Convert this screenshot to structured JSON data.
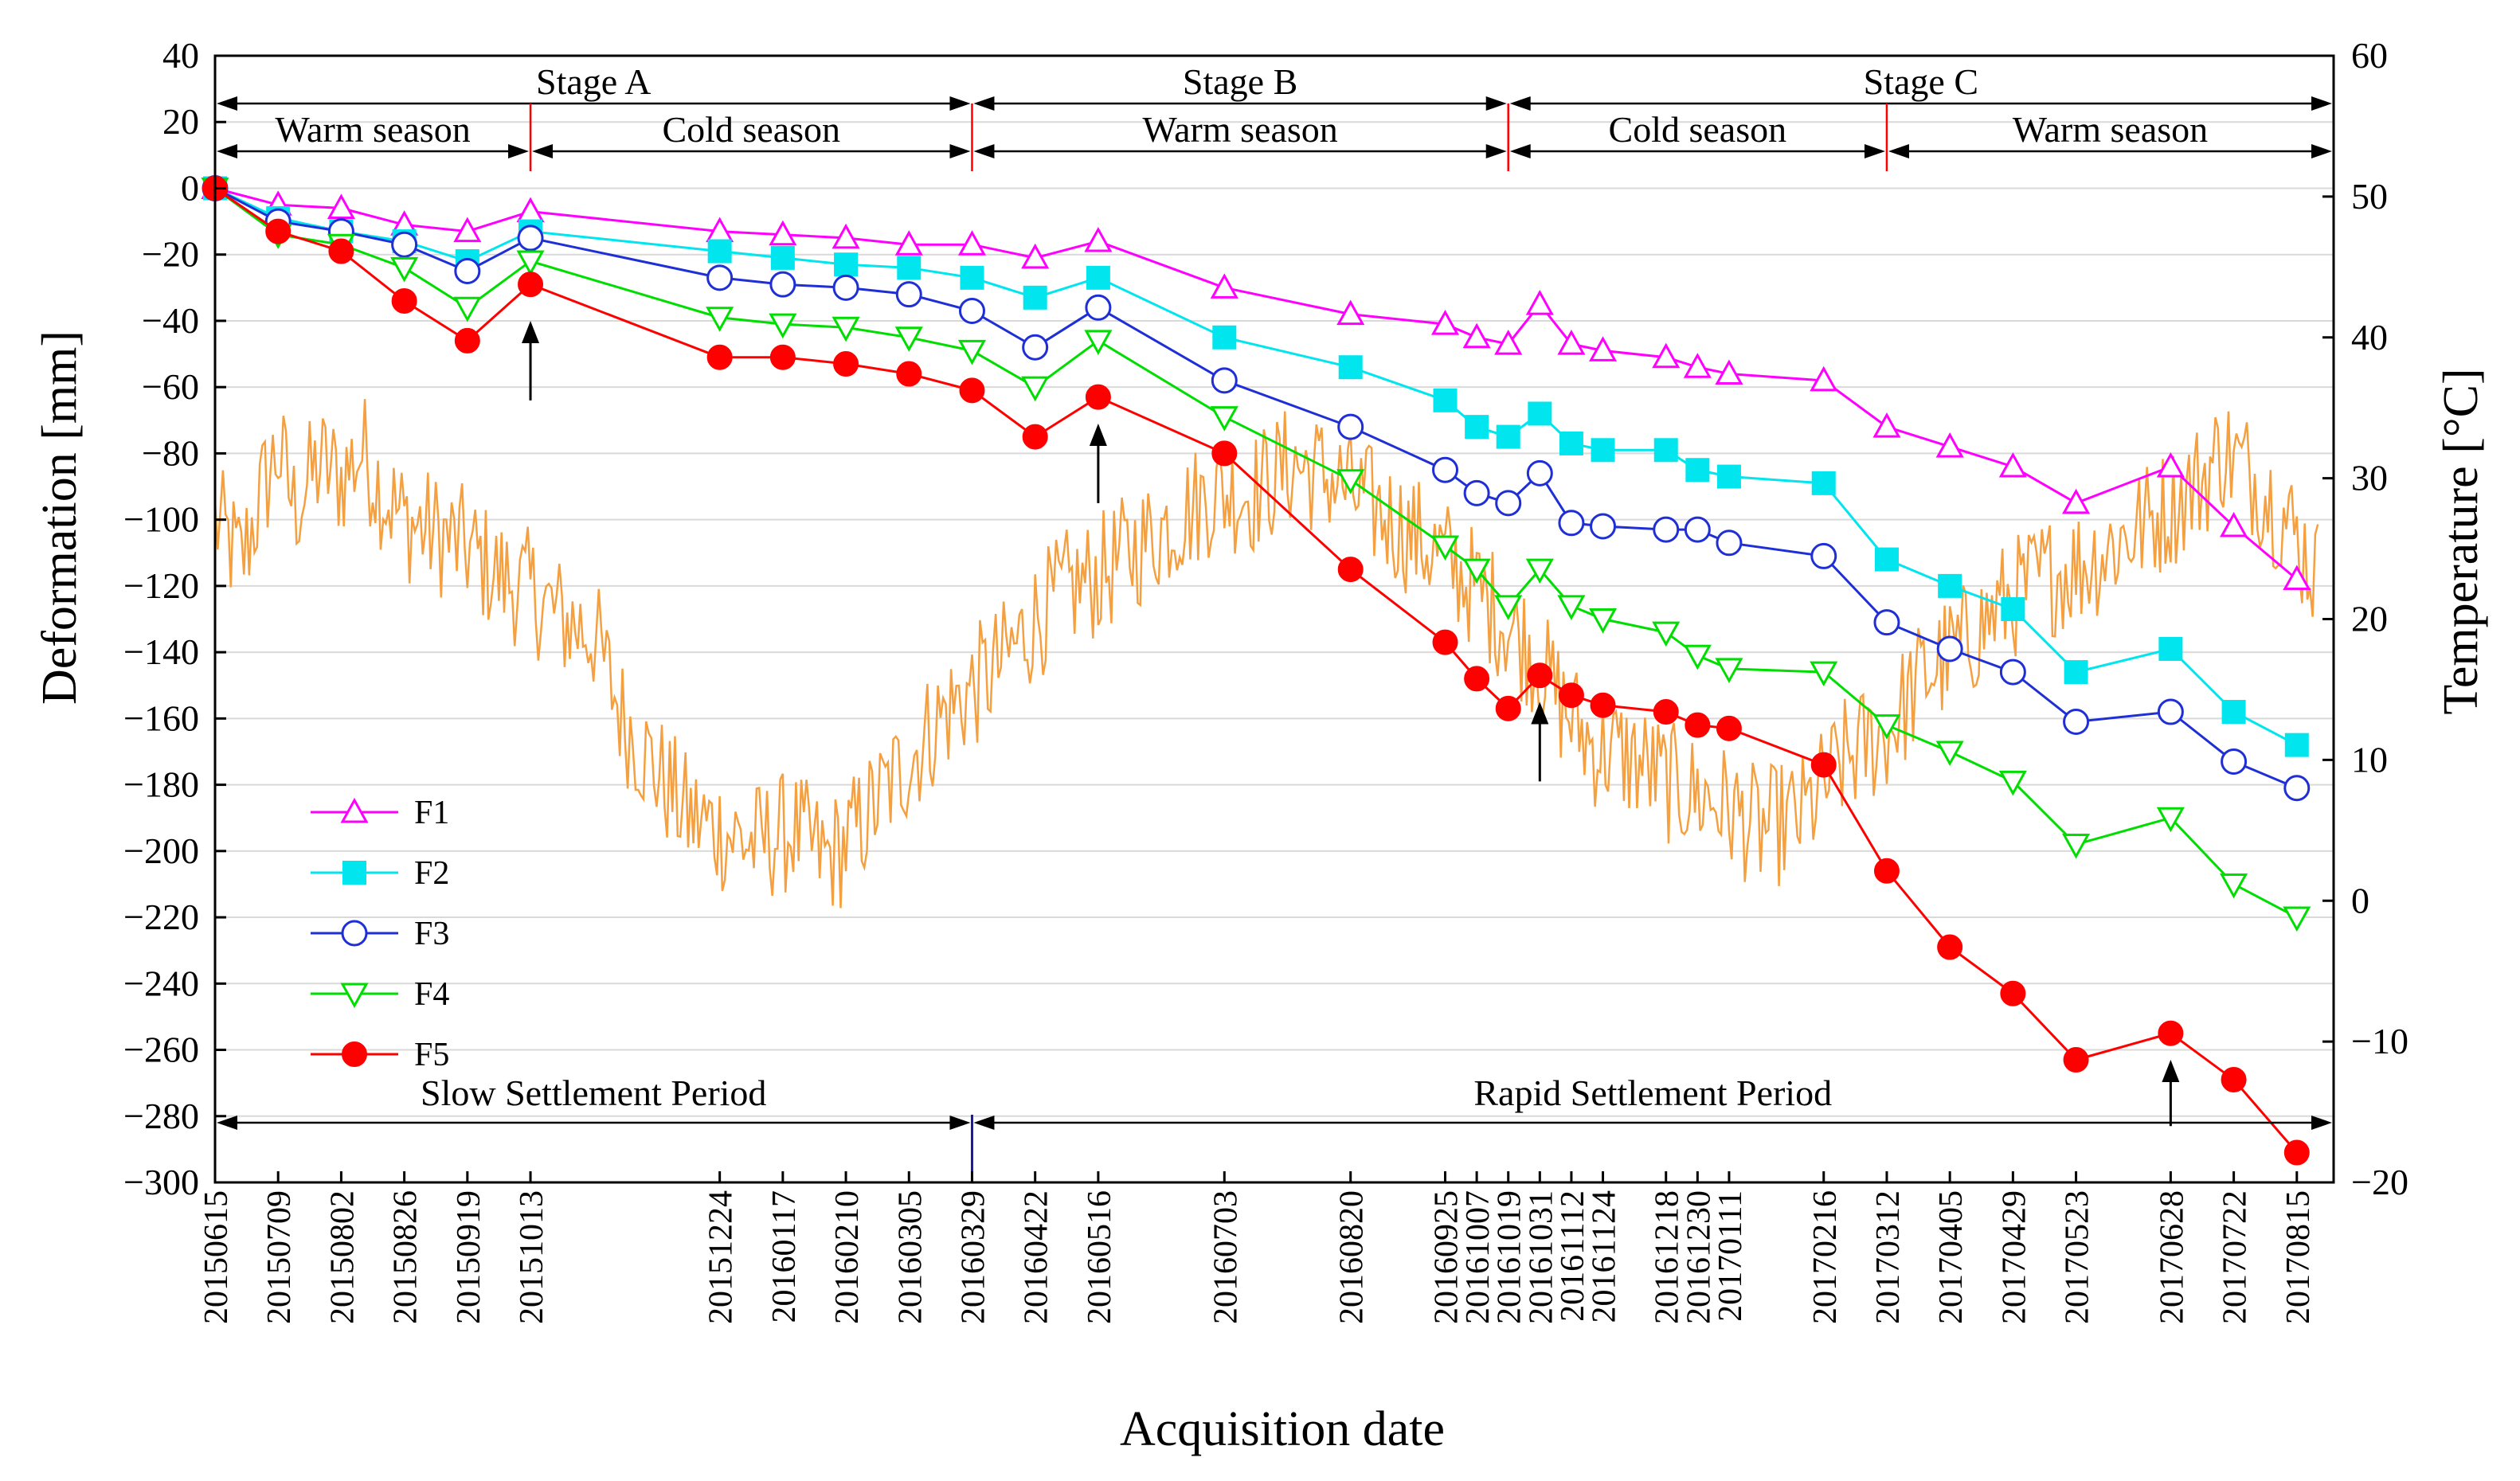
{
  "chart_data": {
    "type": "line",
    "title": "",
    "xlabel": "Acquisition date",
    "ylabel": "Deformation [mm]",
    "y2label": "Temperature [°C]",
    "ylim": [
      -300,
      40
    ],
    "y2lim": [
      -20,
      60
    ],
    "yticks": [
      40,
      20,
      0,
      -20,
      -40,
      -60,
      -80,
      -100,
      -120,
      -140,
      -160,
      -180,
      -200,
      -220,
      -240,
      -260,
      -280,
      -300
    ],
    "y2ticks": [
      60,
      50,
      40,
      30,
      20,
      10,
      0,
      -10,
      -20
    ],
    "dates": [
      "20150615",
      "20150709",
      "20150802",
      "20150826",
      "20150919",
      "20151013",
      "20151224",
      "20160117",
      "20160210",
      "20160305",
      "20160329",
      "20160422",
      "20160516",
      "20160703",
      "20160820",
      "20160925",
      "20161007",
      "20161019",
      "20161031",
      "20161112",
      "20161124",
      "20161218",
      "20161230",
      "20170111",
      "20170216",
      "20170312",
      "20170405",
      "20170429",
      "20170523",
      "20170628",
      "20170722",
      "20170815"
    ],
    "date_labels": [
      "20150615",
      "20150709",
      "20150802",
      "20150826",
      "20150919",
      "20151013",
      "20151224",
      "20160117",
      "20160210",
      "20160305",
      "20160329",
      "20160422",
      "20160516",
      "20160703",
      "20160820",
      "20160925",
      "20161007",
      "20161019",
      "20161031",
      "20161112",
      "20161124",
      "20161218",
      "20161230",
      "20170111",
      "20170216",
      "20170312",
      "20170405",
      "20170429",
      "20170523",
      "20170628",
      "20170722",
      "20170815"
    ],
    "day_offsets": [
      0,
      24,
      48,
      72,
      96,
      120,
      192,
      216,
      240,
      264,
      288,
      312,
      336,
      384,
      432,
      468,
      480,
      492,
      504,
      516,
      528,
      552,
      564,
      576,
      612,
      636,
      660,
      684,
      708,
      744,
      768,
      792
    ],
    "series": [
      {
        "name": "F1",
        "color": "#ff00ff",
        "marker": "triangle-up",
        "values": [
          0,
          -5,
          -6,
          -11,
          -13,
          -7,
          -13,
          -14,
          -15,
          -17,
          -17,
          -21,
          -16,
          -30,
          -38,
          -41,
          -45,
          -47,
          -35,
          -47,
          -49,
          -51,
          -54,
          -56,
          -58,
          -72,
          -78,
          -84,
          -95,
          -84,
          -102,
          -118
        ]
      },
      {
        "name": "F2",
        "color": "#00e5ee",
        "marker": "square",
        "values": [
          0,
          -9,
          -13,
          -16,
          -22,
          -13,
          -19,
          -21,
          -23,
          -24,
          -27,
          -33,
          -27,
          -45,
          -54,
          -64,
          -72,
          -75,
          -68,
          -77,
          -79,
          -79,
          -85,
          -87,
          -89,
          -112,
          -120,
          -127,
          -146,
          -139,
          -158,
          -168
        ]
      },
      {
        "name": "F3",
        "color": "#1f2fd6",
        "marker": "circle-open",
        "values": [
          0,
          -10,
          -13,
          -17,
          -25,
          -15,
          -27,
          -29,
          -30,
          -32,
          -37,
          -48,
          -36,
          -58,
          -72,
          -85,
          -92,
          -95,
          -86,
          -101,
          -102,
          -103,
          -103,
          -107,
          -111,
          -131,
          -139,
          -146,
          -161,
          -158,
          -173,
          -181
        ]
      },
      {
        "name": "F4",
        "color": "#00dd00",
        "marker": "triangle-down",
        "values": [
          0,
          -14,
          -17,
          -24,
          -36,
          -22,
          -39,
          -41,
          -42,
          -45,
          -49,
          -60,
          -46,
          -69,
          -88,
          -108,
          -115,
          -126,
          -115,
          -126,
          -130,
          -134,
          -141,
          -145,
          -146,
          -162,
          -170,
          -179,
          -198,
          -190,
          -210,
          -220
        ]
      },
      {
        "name": "F5",
        "color": "#ff0000",
        "marker": "circle-filled",
        "values": [
          0,
          -13,
          -19,
          -34,
          -46,
          -29,
          -51,
          -51,
          -53,
          -56,
          -61,
          -75,
          -63,
          -80,
          -115,
          -137,
          -148,
          -157,
          -147,
          -153,
          -156,
          -158,
          -162,
          -163,
          -174,
          -206,
          -229,
          -243,
          -263,
          -255,
          -269,
          -291
        ]
      }
    ],
    "temperature": {
      "name": "Temperature",
      "color": "#f5a040",
      "anchors": [
        [
          0,
          27
        ],
        [
          10,
          24
        ],
        [
          18,
          29
        ],
        [
          24,
          32
        ],
        [
          30,
          28
        ],
        [
          40,
          31
        ],
        [
          48,
          30
        ],
        [
          56,
          32
        ],
        [
          64,
          29
        ],
        [
          72,
          27
        ],
        [
          85,
          26
        ],
        [
          96,
          25
        ],
        [
          108,
          23
        ],
        [
          120,
          22
        ],
        [
          132,
          20
        ],
        [
          144,
          19
        ],
        [
          155,
          13
        ],
        [
          165,
          10
        ],
        [
          180,
          6
        ],
        [
          192,
          5
        ],
        [
          205,
          4
        ],
        [
          220,
          5
        ],
        [
          232,
          3
        ],
        [
          240,
          4
        ],
        [
          252,
          7
        ],
        [
          264,
          10
        ],
        [
          276,
          13
        ],
        [
          288,
          15
        ],
        [
          300,
          17
        ],
        [
          312,
          20
        ],
        [
          324,
          22
        ],
        [
          336,
          23
        ],
        [
          350,
          25
        ],
        [
          365,
          27
        ],
        [
          380,
          29
        ],
        [
          395,
          29
        ],
        [
          410,
          31
        ],
        [
          425,
          30
        ],
        [
          440,
          28
        ],
        [
          455,
          26
        ],
        [
          470,
          24
        ],
        [
          485,
          21
        ],
        [
          500,
          18
        ],
        [
          512,
          14
        ],
        [
          524,
          11
        ],
        [
          540,
          10
        ],
        [
          556,
          8
        ],
        [
          572,
          7
        ],
        [
          588,
          5
        ],
        [
          604,
          6
        ],
        [
          620,
          10
        ],
        [
          636,
          12
        ],
        [
          650,
          16
        ],
        [
          664,
          18
        ],
        [
          680,
          21
        ],
        [
          696,
          23
        ],
        [
          712,
          24
        ],
        [
          728,
          26
        ],
        [
          744,
          28
        ],
        [
          756,
          30
        ],
        [
          764,
          32
        ],
        [
          776,
          30
        ],
        [
          788,
          27
        ],
        [
          800,
          23
        ]
      ]
    },
    "stages": [
      {
        "label": "Stage A",
        "from": 0,
        "to": 288
      },
      {
        "label": "Stage B",
        "from": 288,
        "to": 492
      },
      {
        "label": "Stage C",
        "from": 492,
        "to": 806
      }
    ],
    "seasons": [
      {
        "label": "Warm season",
        "from": 0,
        "to": 120
      },
      {
        "label": "Cold season",
        "from": 120,
        "to": 288
      },
      {
        "label": "Warm season",
        "from": 288,
        "to": 492
      },
      {
        "label": "Cold season",
        "from": 492,
        "to": 636
      },
      {
        "label": "Warm season",
        "from": 636,
        "to": 806
      }
    ],
    "periods": [
      {
        "label": "Slow Settlement Period",
        "from": 0,
        "to": 288
      },
      {
        "label": "Rapid Settlement Period",
        "from": 288,
        "to": 806
      }
    ],
    "up_arrows": [
      {
        "day": 120,
        "y_from": -64,
        "y_to": -40
      },
      {
        "day": 336,
        "y_from": -95,
        "y_to": -71
      },
      {
        "day": 504,
        "y_from": -179,
        "y_to": -155
      },
      {
        "day": 744,
        "y_from": -283,
        "y_to": -263
      }
    ],
    "legend": [
      "F1",
      "F2",
      "F3",
      "F4",
      "F5"
    ],
    "legend_position": "lower-left"
  }
}
